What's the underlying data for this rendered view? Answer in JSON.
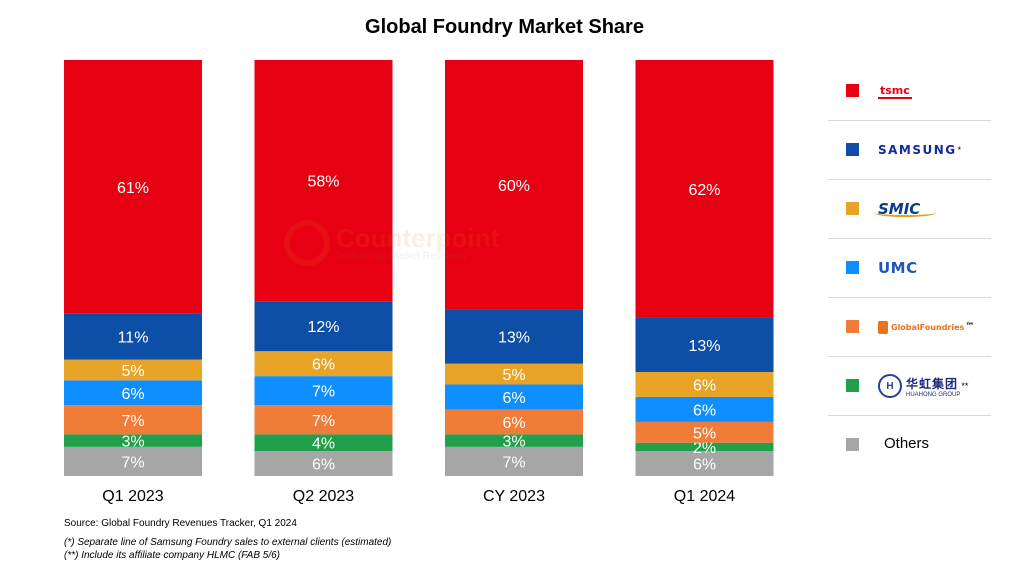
{
  "chart_data": {
    "type": "bar",
    "stacked": true,
    "title": "Global Foundry Market Share",
    "categories": [
      "Q1 2023",
      "Q2 2023",
      "CY 2023",
      "Q1 2024"
    ],
    "ylim": [
      0,
      100
    ],
    "grid": false,
    "legend_placement": "right",
    "series": [
      {
        "name": "Others",
        "values": [
          7,
          6,
          7,
          6
        ],
        "labels": [
          "7%",
          "6%",
          "7%",
          "6%"
        ],
        "color": "#a6a6a6"
      },
      {
        "name": "Huahong Group",
        "values": [
          3,
          4,
          3,
          2
        ],
        "labels": [
          "3%",
          "4%",
          "3%",
          "2%"
        ],
        "color": "#20a04b"
      },
      {
        "name": "GlobalFoundries",
        "values": [
          7,
          7,
          6,
          5
        ],
        "labels": [
          "7%",
          "7%",
          "6%",
          "5%"
        ],
        "color": "#f07c3a"
      },
      {
        "name": "UMC",
        "values": [
          6,
          7,
          6,
          6
        ],
        "labels": [
          "6%",
          "7%",
          "6%",
          "6%"
        ],
        "color": "#0f8fff"
      },
      {
        "name": "SMIC",
        "values": [
          5,
          6,
          5,
          6
        ],
        "labels": [
          "5%",
          "6%",
          "5%",
          "6%"
        ],
        "color": "#e8a427"
      },
      {
        "name": "Samsung",
        "values": [
          11,
          12,
          13,
          13
        ],
        "labels": [
          "11%",
          "12%",
          "13%",
          "13%"
        ],
        "color": "#0d4ea6"
      },
      {
        "name": "TSMC",
        "values": [
          61,
          58,
          60,
          62
        ],
        "labels": [
          "61%",
          "58%",
          "60%",
          "62%"
        ],
        "color": "#e60012"
      }
    ]
  },
  "legend": {
    "items": [
      {
        "key": "tsmc",
        "logo_text": "tsmc",
        "color": "#e60012"
      },
      {
        "key": "samsung",
        "logo_text": "SAMSUNG",
        "star": "*",
        "color": "#0d4ea6"
      },
      {
        "key": "smic",
        "logo_text": "SMIC",
        "color": "#e8a427"
      },
      {
        "key": "umc",
        "logo_text": "UMC",
        "color": "#0f8fff"
      },
      {
        "key": "gf",
        "logo_text": "GlobalFoundries",
        "tm": "™",
        "color": "#f07c3a"
      },
      {
        "key": "huahong",
        "logo_text": "华虹集团",
        "logo_sub": "HUAHONG GROUP",
        "star": "**",
        "color": "#20a04b"
      },
      {
        "key": "others",
        "text": "Others",
        "color": "#a6a6a6"
      }
    ]
  },
  "watermark": {
    "name": "Counterpoint",
    "sub": "Technology Market Research"
  },
  "notes": {
    "source": "Source: Global Foundry Revenues Tracker, Q1 2024",
    "note1": "(*) Separate line of Samsung Foundry sales to external clients (estimated)",
    "note2": "(**) Include its affiliate company HLMC (FAB 5/6)"
  }
}
